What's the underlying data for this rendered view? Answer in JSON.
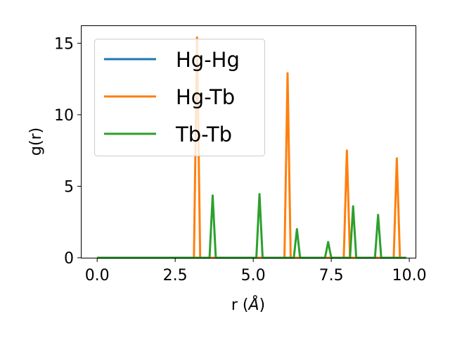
{
  "chart_data": {
    "type": "line",
    "title": "",
    "xlabel": "r (",
    "xlabel_symbol": "Å",
    "xlabel_close": ")",
    "ylabel": "g(r)",
    "xlim": [
      -0.5,
      10.2
    ],
    "ylim": [
      0,
      16.2
    ],
    "xticks": [
      0.0,
      2.5,
      5.0,
      7.5,
      10.0
    ],
    "xtick_labels": [
      "0.0",
      "2.5",
      "5.0",
      "7.5",
      "10.0"
    ],
    "yticks": [
      0,
      5,
      10,
      15
    ],
    "ytick_labels": [
      "0",
      "5",
      "10",
      "15"
    ],
    "grid": false,
    "legend_position": "upper-left",
    "series": [
      {
        "name": "Hg-Hg",
        "color": "#1f77b4",
        "x": [
          0.0,
          9.9
        ],
        "y": [
          0,
          0
        ]
      },
      {
        "name": "Hg-Tb",
        "color": "#ff7f0e",
        "x": [
          0.0,
          3.1,
          3.2,
          3.3,
          6.0,
          6.1,
          6.2,
          7.9,
          8.0,
          8.1,
          9.5,
          9.6,
          9.7,
          9.9
        ],
        "y": [
          0,
          0,
          15.4,
          0,
          0,
          12.9,
          0,
          0,
          7.5,
          0,
          0,
          6.95,
          0,
          0
        ]
      },
      {
        "name": "Tb-Tb",
        "color": "#2ca02c",
        "x": [
          0.0,
          3.6,
          3.7,
          3.8,
          5.1,
          5.2,
          5.3,
          6.3,
          6.4,
          6.5,
          7.3,
          7.4,
          7.5,
          8.1,
          8.2,
          8.3,
          8.9,
          9.0,
          9.1,
          9.9
        ],
        "y": [
          0,
          0,
          4.35,
          0,
          0,
          4.45,
          0,
          0,
          2.0,
          0,
          0,
          1.1,
          0,
          0,
          3.6,
          0,
          0,
          3.0,
          0,
          0
        ]
      }
    ]
  }
}
